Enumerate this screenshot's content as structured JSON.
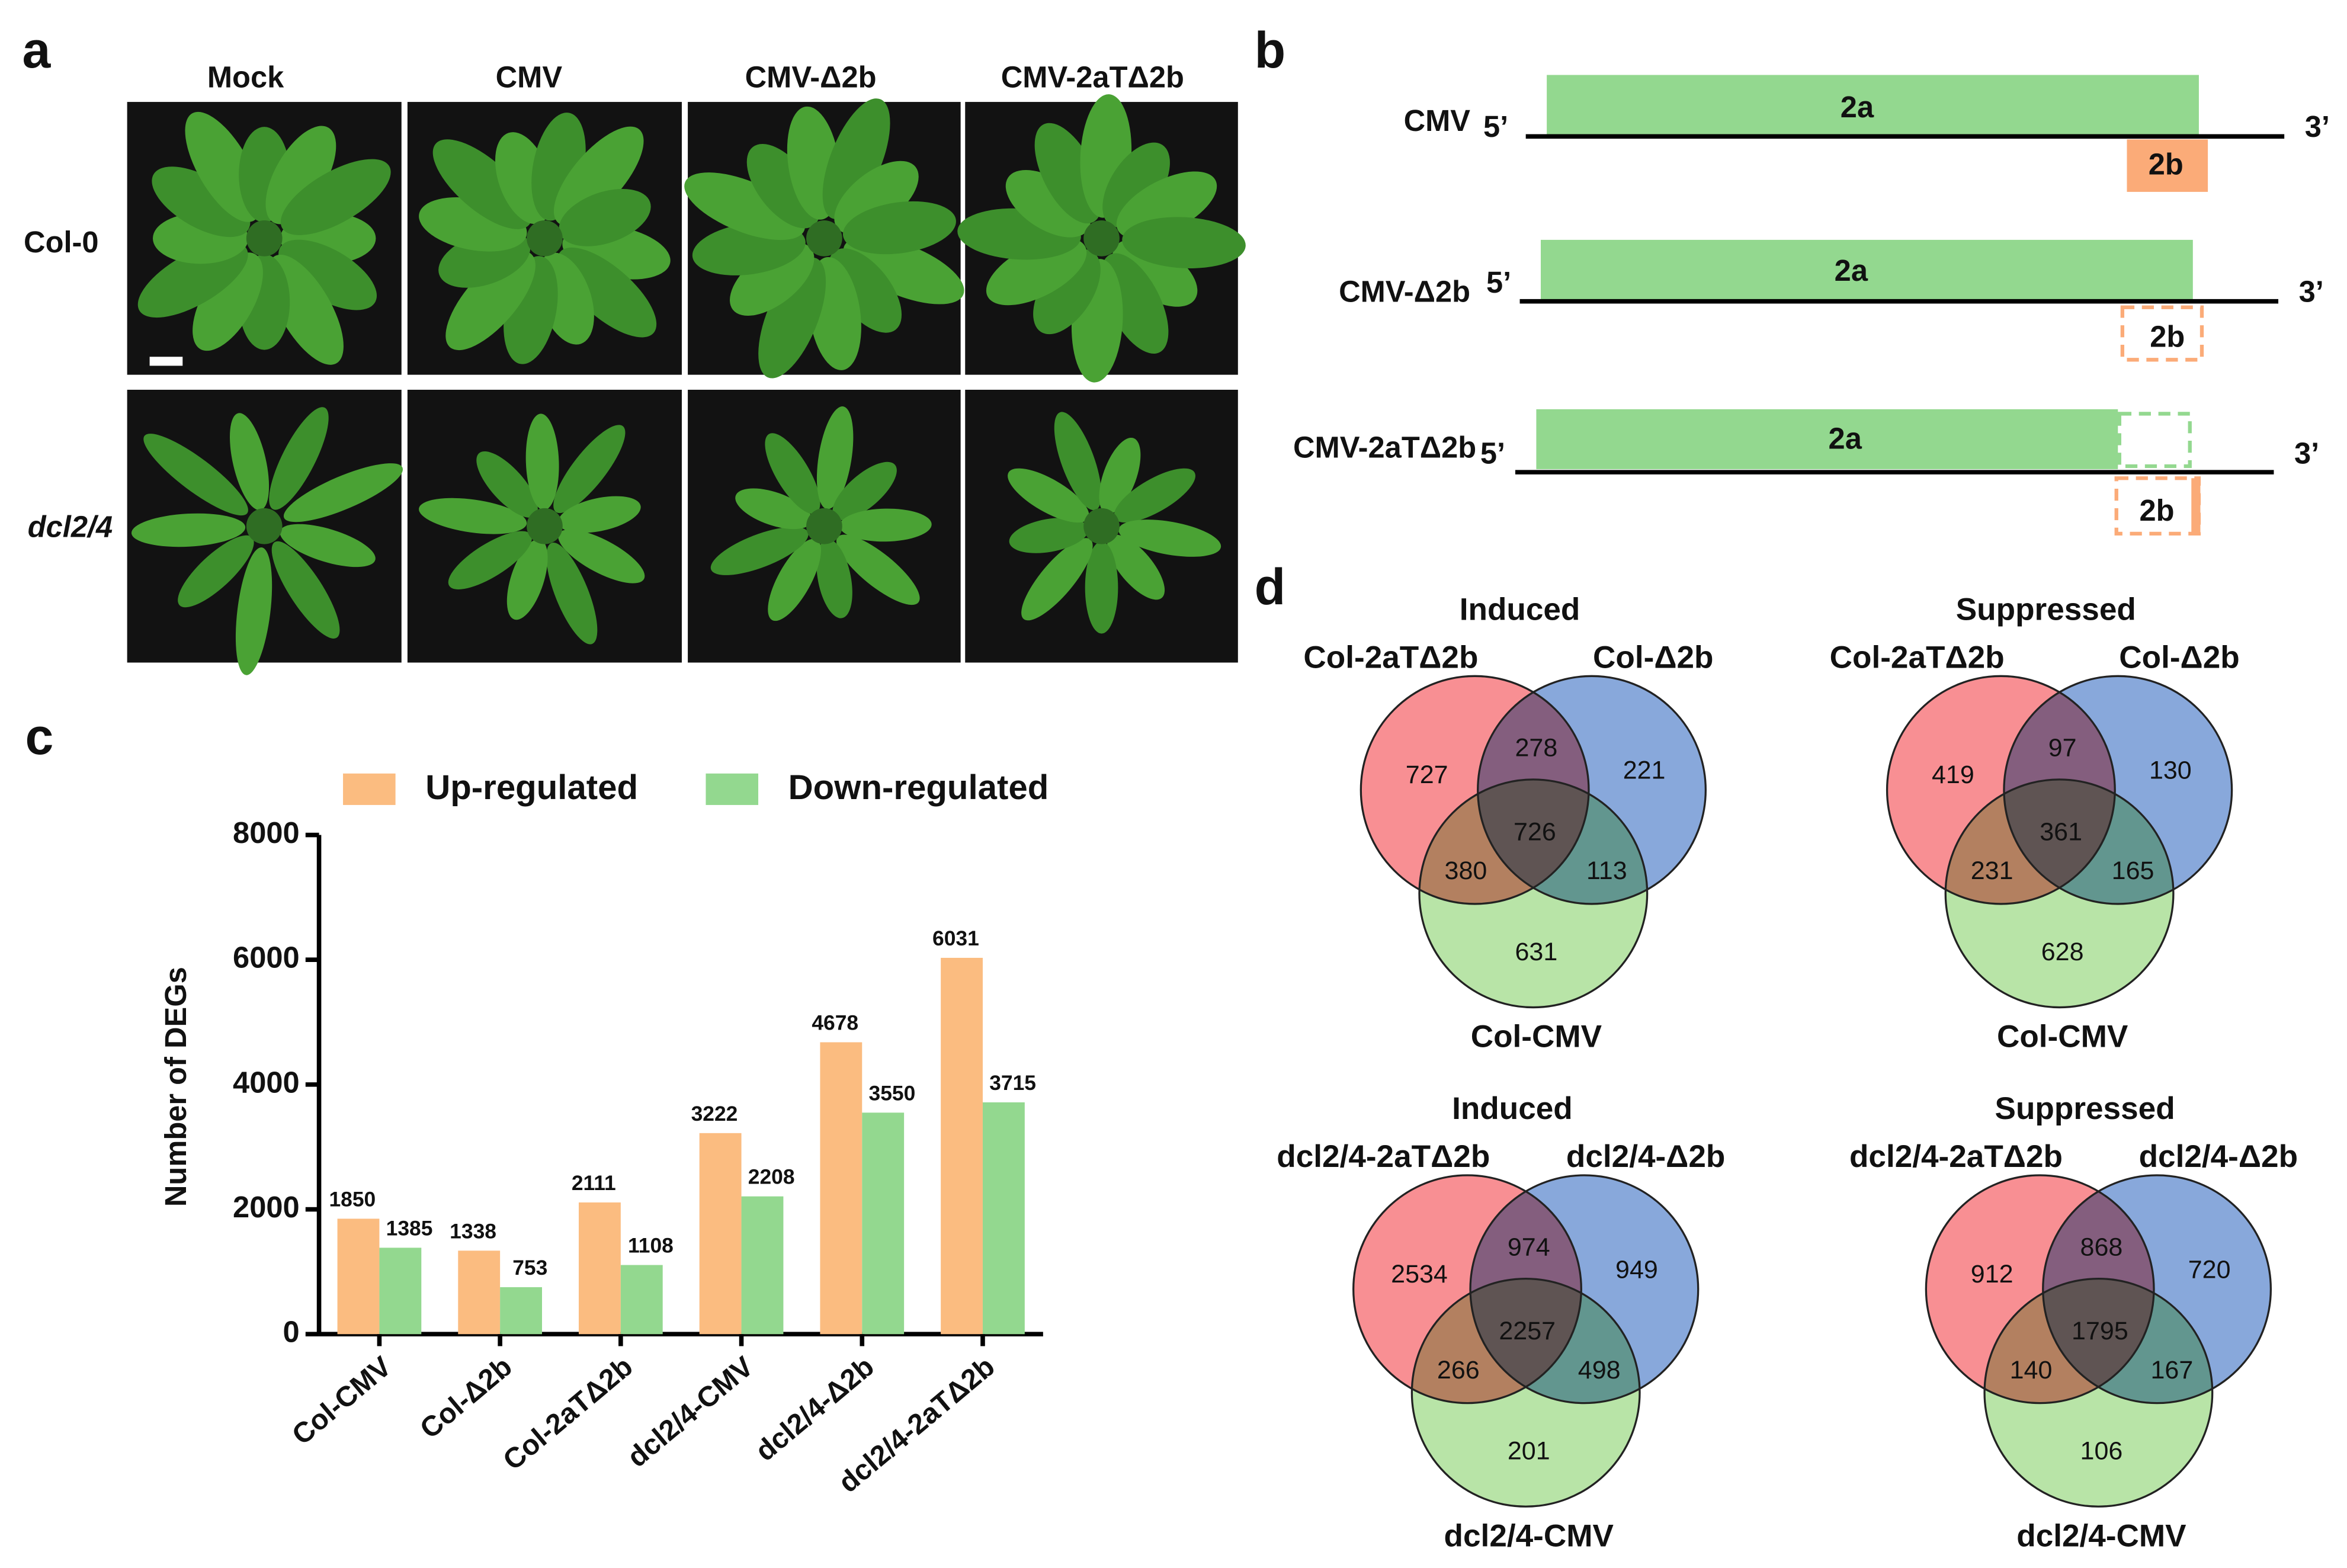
{
  "panel_labels": [
    "a",
    "b",
    "c",
    "d"
  ],
  "panel_a": {
    "columns": [
      "Mock",
      "CMV",
      "CMV-Δ2b",
      "CMV-2aTΔ2b"
    ],
    "rows": [
      "Col-0",
      "dcl2/4"
    ]
  },
  "panel_b": {
    "constructs": [
      {
        "name": "CMV",
        "five": "5’",
        "three": "3’",
        "gene_a": "2a",
        "gene_b": "2b"
      },
      {
        "name": "CMV-Δ2b",
        "five": "5’",
        "three": "3’",
        "gene_a": "2a",
        "gene_b": "2b"
      },
      {
        "name": "CMV-2aTΔ2b",
        "five": "5’",
        "three": "3’",
        "gene_a": "2a",
        "gene_b": "2b"
      }
    ]
  },
  "chart_data": [
    {
      "type": "bar",
      "y_label": "Number of DEGs",
      "categories": [
        "Col-CMV",
        "Col-Δ2b",
        "Col-2aTΔ2b",
        "dcl2/4-CMV",
        "dcl2/4-Δ2b",
        "dcl2/4-2aTΔ2b"
      ],
      "series": [
        {
          "name": "Up-regulated",
          "color": "#fbbc80",
          "values": [
            1850,
            1338,
            2111,
            3222,
            4678,
            6031
          ]
        },
        {
          "name": "Down-regulated",
          "color": "#93d88f",
          "values": [
            1385,
            753,
            1108,
            2208,
            3550,
            3715
          ]
        }
      ],
      "ylim": [
        0,
        8000
      ],
      "yticks": [
        0,
        2000,
        4000,
        6000,
        8000
      ],
      "legend": "top"
    },
    {
      "type": "venn",
      "title": "Induced",
      "sets": [
        "Col-2aTΔ2b",
        "Col-Δ2b",
        "Col-CMV"
      ],
      "values": [
        727,
        278,
        221,
        726,
        380,
        113,
        631
      ]
    },
    {
      "type": "venn",
      "title": "Suppressed",
      "sets": [
        "Col-2aTΔ2b",
        "Col-Δ2b",
        "Col-CMV"
      ],
      "values": [
        419,
        97,
        130,
        361,
        231,
        165,
        628
      ]
    },
    {
      "type": "venn",
      "title": "Induced",
      "sets": [
        "dcl2/4-2aTΔ2b",
        "dcl2/4-Δ2b",
        "dcl2/4-CMV"
      ],
      "values": [
        2534,
        974,
        949,
        2257,
        266,
        498,
        201
      ]
    },
    {
      "type": "venn",
      "title": "Suppressed",
      "sets": [
        "dcl2/4-2aTΔ2b",
        "dcl2/4-Δ2b",
        "dcl2/4-CMV"
      ],
      "values": [
        912,
        868,
        720,
        1795,
        140,
        167,
        106
      ]
    }
  ]
}
